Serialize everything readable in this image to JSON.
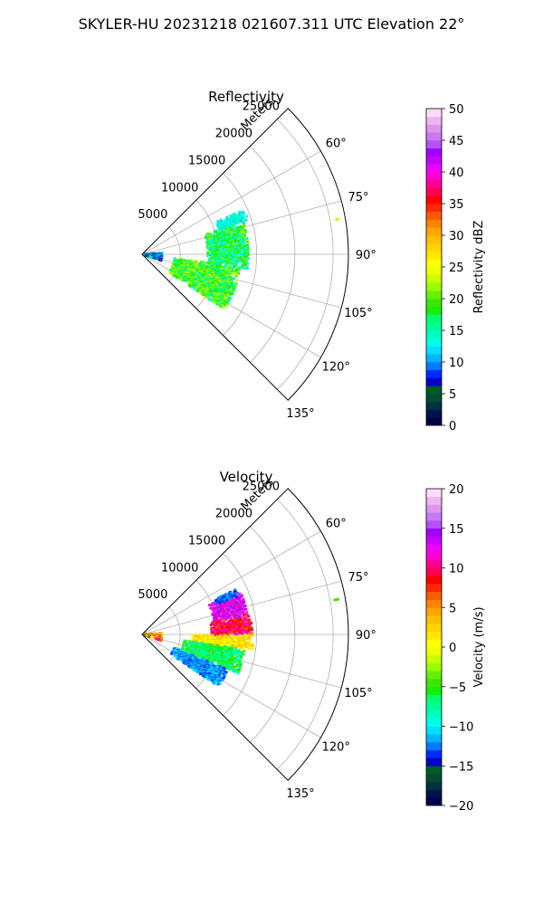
{
  "figure": {
    "title": "SKYLER-HU  20231218  021607.311 UTC Elevation 22°"
  },
  "chart_data": [
    {
      "type": "polar-sector-heatmap",
      "title": "Reflectivity",
      "radial_label": "Meters",
      "range_ticks": [
        "5000",
        "10000",
        "15000",
        "20000",
        "25000"
      ],
      "r_lim": [
        0,
        27000
      ],
      "azimuth_range_deg": [
        45,
        135
      ],
      "azimuth_ticks": [
        "60°",
        "75°",
        "90°",
        "105°",
        "120°",
        "135°"
      ],
      "grid": true,
      "colorbar": {
        "label": "Reflectivity dBZ",
        "vmin": 0,
        "vmax": 50,
        "ticks": [
          "0",
          "5",
          "10",
          "15",
          "20",
          "25",
          "30",
          "35",
          "40",
          "45",
          "50"
        ],
        "colors": [
          "#00004a",
          "#00124a",
          "#003240",
          "#004c30",
          "#005c24",
          "#0000c8",
          "#0028ff",
          "#0078ff",
          "#00b4ff",
          "#00e0ff",
          "#00ffe8",
          "#00ffbe",
          "#00ff96",
          "#00ff6e",
          "#14f000",
          "#3ce600",
          "#64f000",
          "#96ff00",
          "#c8ff00",
          "#f0ff00",
          "#ffff00",
          "#ffe600",
          "#ffd200",
          "#ffbe00",
          "#ffa500",
          "#ff8200",
          "#ff5a00",
          "#ff2800",
          "#ff0000",
          "#ff0050",
          "#ff0096",
          "#ff00d2",
          "#f000ff",
          "#c800ff",
          "#a000ff",
          "#b450ff",
          "#c878f0",
          "#dc96f0",
          "#f0b4f0",
          "#ffdcff"
        ]
      },
      "echo_regions": [
        {
          "az": [
            97,
            124
          ],
          "r": [
            4200,
            13000
          ],
          "values_dbz": [
            14,
            24
          ],
          "typical_dbz": 19
        },
        {
          "az": [
            72,
            98
          ],
          "r": [
            8500,
            14000
          ],
          "values_dbz": [
            12,
            22
          ],
          "typical_dbz": 17
        },
        {
          "az": [
            66,
            72
          ],
          "r": [
            10500,
            14500
          ],
          "values_dbz": [
            11,
            16
          ],
          "typical_dbz": 14
        },
        {
          "az": [
            86,
            108
          ],
          "r": [
            0,
            2600
          ],
          "values_dbz": [
            3,
            14
          ],
          "typical_dbz": 11
        },
        {
          "az": [
            78.5,
            79.5
          ],
          "r": [
            25500,
            26100
          ],
          "values_dbz": [
            22,
            23
          ],
          "typical_dbz": 22
        }
      ]
    },
    {
      "type": "polar-sector-heatmap",
      "title": "Velocity",
      "radial_label": "Meters",
      "range_ticks": [
        "5000",
        "10000",
        "15000",
        "20000",
        "25000"
      ],
      "r_lim": [
        0,
        27000
      ],
      "azimuth_range_deg": [
        45,
        135
      ],
      "azimuth_ticks": [
        "60°",
        "75°",
        "90°",
        "105°",
        "120°",
        "135°"
      ],
      "grid": true,
      "colorbar": {
        "label": "Velocity (m/s)",
        "vmin": -20,
        "vmax": 20,
        "ticks": [
          "−20",
          "−15",
          "−10",
          "−5",
          "0",
          "5",
          "10",
          "15",
          "20"
        ],
        "colors": [
          "#00004a",
          "#00124a",
          "#003240",
          "#004c30",
          "#005c24",
          "#0000c8",
          "#0028ff",
          "#0078ff",
          "#00b4ff",
          "#00e0ff",
          "#00ffe8",
          "#00ffbe",
          "#00ff96",
          "#00ff6e",
          "#14f000",
          "#3ce600",
          "#64f000",
          "#96ff00",
          "#c8ff00",
          "#f0ff00",
          "#ffff00",
          "#ffe600",
          "#ffd200",
          "#ffbe00",
          "#ffa500",
          "#ff8200",
          "#ff5a00",
          "#ff2800",
          "#ff0000",
          "#ff0050",
          "#ff0096",
          "#ff00d2",
          "#f000ff",
          "#c800ff",
          "#a000ff",
          "#b450ff",
          "#c878f0",
          "#dc96f0",
          "#f0b4f0",
          "#ffdcff"
        ]
      },
      "echo_regions": [
        {
          "az": [
            66,
            80
          ],
          "r": [
            9500,
            14000
          ],
          "values_ms": [
            10,
            16
          ],
          "typical_ms": 13
        },
        {
          "az": [
            80,
            90
          ],
          "r": [
            9000,
            14500
          ],
          "values_ms": [
            6,
            12
          ],
          "typical_ms": 9
        },
        {
          "az": [
            90,
            98
          ],
          "r": [
            6500,
            14500
          ],
          "values_ms": [
            -1,
            4
          ],
          "typical_ms": 1
        },
        {
          "az": [
            98,
            112
          ],
          "r": [
            5500,
            13500
          ],
          "values_ms": [
            -9,
            -4
          ],
          "typical_ms": -7
        },
        {
          "az": [
            112,
            124
          ],
          "r": [
            4500,
            12000
          ],
          "values_ms": [
            -14,
            -10
          ],
          "typical_ms": -12
        },
        {
          "az": [
            64,
            68
          ],
          "r": [
            10500,
            13500
          ],
          "values_ms": [
            -14,
            -11
          ],
          "typical_ms": -12
        },
        {
          "az": [
            86,
            108
          ],
          "r": [
            0,
            2600
          ],
          "values_ms": [
            -4,
            12
          ],
          "typical_ms": 3
        },
        {
          "az": [
            78.5,
            79.5
          ],
          "r": [
            25500,
            26100
          ],
          "values_ms": [
            -5,
            -4
          ],
          "typical_ms": -5
        }
      ]
    }
  ]
}
